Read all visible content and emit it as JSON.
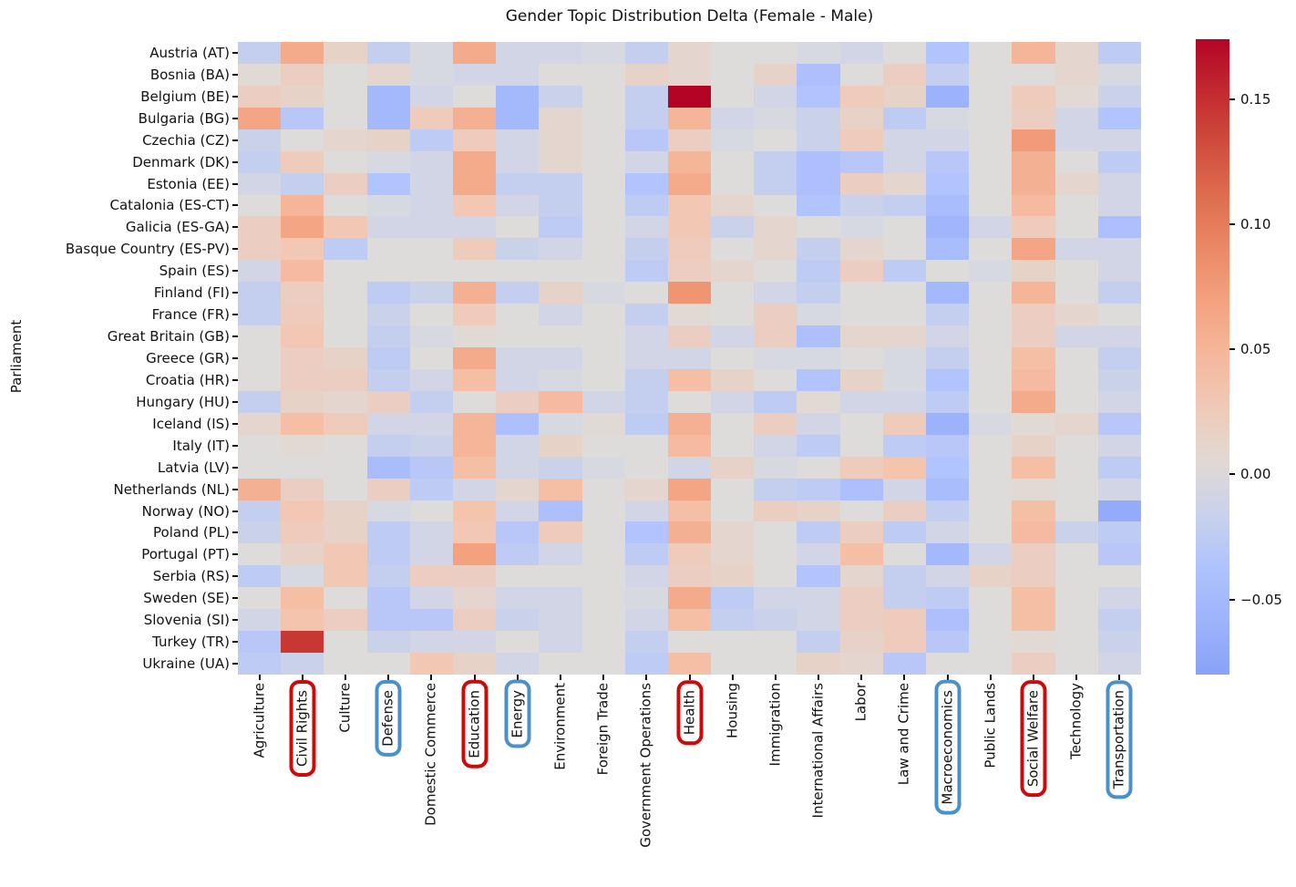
{
  "title": "Gender Topic Distribution Delta (Female - Male)",
  "ylabel": "Parliament",
  "highlight": {
    "red_color": "#cc0a0a",
    "blue_color": "#4a90c9",
    "red_circled": [
      "Civil Rights",
      "Education",
      "Health",
      "Social Welfare"
    ],
    "blue_circled": [
      "Defense",
      "Energy",
      "Macroeconomics",
      "Transportation"
    ]
  },
  "colorbar": {
    "tick_labels": [
      "0.15",
      "0.10",
      "0.05",
      "0.00",
      "−0.05"
    ],
    "tick_values": [
      0.15,
      0.1,
      0.05,
      0.0,
      -0.05
    ]
  },
  "chart_data": {
    "type": "heatmap",
    "title": "Gender Topic Distribution Delta (Female - Male)",
    "xlabel": "",
    "ylabel": "Parliament",
    "colormap": "coolwarm",
    "center": 0,
    "vmin": -0.08,
    "vmax": 0.174,
    "legend_position": "right-colorbar",
    "grid": false,
    "columns": [
      "Agriculture",
      "Civil Rights",
      "Culture",
      "Defense",
      "Domestic Commerce",
      "Education",
      "Energy",
      "Environment",
      "Foreign Trade",
      "Government Operations",
      "Health",
      "Housing",
      "Immigration",
      "International Affairs",
      "Labor",
      "Law and Crime",
      "Macroeconomics",
      "Public Lands",
      "Social Welfare",
      "Technology",
      "Transportation"
    ],
    "rows": [
      "Austria (AT)",
      "Bosnia (BA)",
      "Belgium (BE)",
      "Bulgaria (BG)",
      "Czechia (CZ)",
      "Denmark (DK)",
      "Estonia (EE)",
      "Catalonia (ES-CT)",
      "Galicia (ES-GA)",
      "Basque Country (ES-PV)",
      "Spain (ES)",
      "Finland (FI)",
      "France (FR)",
      "Great Britain (GB)",
      "Greece (GR)",
      "Croatia (HR)",
      "Hungary (HU)",
      "Iceland (IS)",
      "Italy (IT)",
      "Latvia (LV)",
      "Netherlands (NL)",
      "Norway (NO)",
      "Poland (PL)",
      "Portugal (PT)",
      "Serbia (RS)",
      "Sweden (SE)",
      "Slovenia (SI)",
      "Turkey (TR)",
      "Ukraine (UA)"
    ],
    "values": [
      [
        -0.02,
        0.06,
        0.015,
        -0.02,
        -0.005,
        0.06,
        -0.01,
        -0.01,
        -0.005,
        -0.02,
        0.01,
        0,
        0,
        -0.005,
        -0.01,
        0,
        -0.035,
        0,
        0.05,
        0.01,
        -0.025
      ],
      [
        0.005,
        0.02,
        0,
        0.01,
        -0.005,
        -0.01,
        -0.01,
        0,
        0,
        0.015,
        0.01,
        0,
        0.015,
        -0.04,
        0,
        0.02,
        -0.02,
        0,
        0,
        0.01,
        -0.005
      ],
      [
        0.02,
        0.015,
        0,
        -0.05,
        -0.01,
        0,
        -0.05,
        -0.015,
        0,
        -0.02,
        0.174,
        0,
        -0.01,
        -0.035,
        0.025,
        0.015,
        -0.06,
        0,
        0.025,
        0.005,
        -0.015
      ],
      [
        0.065,
        -0.03,
        0,
        -0.05,
        0.025,
        0.055,
        -0.05,
        0.01,
        0,
        -0.02,
        0.05,
        -0.01,
        -0.005,
        -0.015,
        0.015,
        -0.025,
        -0.005,
        0,
        0.02,
        -0.01,
        -0.035
      ],
      [
        -0.015,
        0,
        0.01,
        0.015,
        -0.025,
        0.025,
        -0.01,
        0.01,
        0,
        -0.03,
        0.02,
        -0.005,
        0,
        -0.015,
        0.025,
        -0.01,
        -0.01,
        0,
        0.075,
        -0.01,
        -0.01
      ],
      [
        -0.02,
        0.025,
        0,
        -0.005,
        -0.01,
        0.06,
        -0.01,
        0.01,
        0,
        -0.01,
        0.05,
        0,
        -0.02,
        -0.04,
        -0.03,
        -0.01,
        -0.03,
        0,
        0.055,
        0,
        -0.025
      ],
      [
        -0.01,
        -0.02,
        0.02,
        -0.035,
        -0.01,
        0.06,
        -0.02,
        -0.02,
        0,
        -0.035,
        0.06,
        0,
        -0.02,
        -0.04,
        0.02,
        0.01,
        -0.035,
        0,
        0.055,
        0.01,
        -0.01
      ],
      [
        0,
        0.05,
        0,
        -0.005,
        -0.01,
        0.03,
        -0.01,
        -0.02,
        0,
        -0.025,
        0.03,
        0.01,
        0,
        -0.035,
        -0.015,
        -0.02,
        -0.045,
        0,
        0.045,
        0,
        -0.01
      ],
      [
        0.02,
        0.065,
        0.03,
        -0.01,
        -0.01,
        -0.01,
        0,
        -0.025,
        0,
        -0.01,
        0.03,
        -0.015,
        0.01,
        0,
        -0.005,
        0,
        -0.055,
        -0.01,
        0.025,
        0,
        -0.04
      ],
      [
        0.02,
        0.03,
        -0.025,
        0,
        0,
        0.025,
        -0.015,
        -0.01,
        0,
        -0.02,
        0.025,
        0,
        0.01,
        -0.02,
        0.01,
        0,
        -0.045,
        0,
        0.065,
        -0.01,
        -0.01
      ],
      [
        -0.01,
        0.045,
        0,
        0,
        0,
        0,
        0,
        0,
        0,
        -0.025,
        0.02,
        0.01,
        0,
        -0.025,
        0.02,
        -0.025,
        0,
        -0.005,
        0.015,
        0,
        -0.01
      ],
      [
        -0.02,
        0.02,
        0,
        -0.025,
        -0.015,
        0.055,
        -0.02,
        0.015,
        -0.005,
        0,
        0.08,
        0,
        -0.01,
        -0.02,
        0,
        0,
        -0.05,
        0,
        0.05,
        0,
        -0.02
      ],
      [
        -0.02,
        0.025,
        0,
        -0.015,
        0,
        0.025,
        0,
        -0.01,
        0,
        -0.02,
        0.005,
        0,
        0.02,
        -0.005,
        0,
        0,
        -0.02,
        0,
        0.02,
        0.01,
        0
      ],
      [
        0,
        0.03,
        0,
        -0.02,
        -0.005,
        0.005,
        0,
        0,
        0,
        -0.01,
        0.02,
        -0.01,
        0.02,
        -0.04,
        0.01,
        0.01,
        -0.01,
        0,
        0.02,
        -0.01,
        -0.01
      ],
      [
        0,
        0.02,
        0.015,
        -0.025,
        0,
        0.06,
        -0.01,
        -0.01,
        0,
        -0.01,
        -0.01,
        0,
        -0.005,
        -0.005,
        0,
        -0.005,
        -0.02,
        0,
        0.04,
        0,
        -0.02
      ],
      [
        0,
        0.02,
        0.02,
        -0.02,
        -0.01,
        0.04,
        -0.01,
        -0.005,
        0,
        -0.02,
        0.04,
        0.015,
        0,
        -0.035,
        0.015,
        -0.005,
        -0.035,
        0,
        0.045,
        0,
        -0.015
      ],
      [
        -0.02,
        0.015,
        0.01,
        0.02,
        -0.02,
        0,
        0.02,
        0.045,
        -0.01,
        -0.02,
        0,
        -0.01,
        -0.025,
        0.005,
        -0.01,
        -0.01,
        -0.025,
        0,
        0.06,
        0,
        -0.01
      ],
      [
        0.01,
        0.04,
        0.025,
        -0.01,
        -0.01,
        0.05,
        -0.04,
        -0.005,
        0.005,
        -0.025,
        0.055,
        0,
        0.02,
        -0.01,
        0,
        0.025,
        -0.06,
        -0.005,
        0.005,
        0.01,
        -0.03
      ],
      [
        0,
        0.005,
        0,
        -0.02,
        -0.015,
        0.05,
        -0.01,
        0.015,
        0,
        0,
        0.045,
        0,
        -0.01,
        -0.025,
        0,
        -0.025,
        -0.03,
        0,
        0.015,
        0,
        -0.01
      ],
      [
        0,
        0,
        0,
        -0.045,
        -0.03,
        0.04,
        -0.01,
        -0.015,
        -0.005,
        0,
        -0.01,
        0.015,
        -0.005,
        0,
        0.025,
        0.035,
        -0.035,
        0,
        0.04,
        0,
        -0.025
      ],
      [
        0.055,
        0.02,
        0,
        0.02,
        -0.025,
        -0.01,
        0.01,
        0.04,
        0,
        0.01,
        0.065,
        0,
        -0.02,
        -0.025,
        -0.04,
        -0.01,
        -0.045,
        0,
        0.005,
        0,
        -0.01
      ],
      [
        -0.02,
        0.03,
        0.015,
        -0.005,
        0,
        0.035,
        -0.01,
        -0.04,
        0,
        -0.01,
        0.04,
        0,
        0.02,
        0.015,
        0,
        0.02,
        -0.02,
        0,
        0.04,
        0,
        -0.07
      ],
      [
        -0.015,
        0.025,
        0.015,
        -0.025,
        -0.01,
        0.03,
        -0.03,
        0.025,
        0,
        -0.035,
        0.055,
        0.01,
        0,
        -0.025,
        0.02,
        -0.025,
        -0.01,
        0,
        0.045,
        -0.015,
        -0.025
      ],
      [
        0,
        0.015,
        0.03,
        -0.025,
        -0.01,
        0.07,
        -0.025,
        -0.01,
        0,
        -0.025,
        0.025,
        0.01,
        0,
        -0.01,
        0.04,
        0,
        -0.05,
        -0.01,
        0.02,
        0,
        -0.03
      ],
      [
        -0.025,
        -0.005,
        0.03,
        -0.02,
        0.02,
        0.02,
        0,
        0,
        0,
        -0.01,
        0.02,
        0.015,
        0,
        -0.035,
        0.01,
        -0.02,
        -0.01,
        0.015,
        0.02,
        0,
        0
      ],
      [
        0,
        0.04,
        0,
        -0.03,
        -0.01,
        0.01,
        -0.01,
        -0.01,
        0,
        -0.005,
        0.06,
        -0.025,
        -0.01,
        -0.01,
        0.02,
        -0.02,
        -0.025,
        0,
        0.04,
        0,
        -0.01
      ],
      [
        -0.01,
        0.035,
        0.02,
        -0.03,
        -0.03,
        0.02,
        -0.015,
        -0.01,
        0,
        -0.01,
        0.04,
        -0.02,
        -0.015,
        -0.01,
        0.02,
        0.025,
        -0.04,
        0,
        0.04,
        0,
        -0.02
      ],
      [
        -0.03,
        0.145,
        0,
        -0.015,
        -0.01,
        -0.01,
        0,
        -0.01,
        0,
        -0.02,
        0,
        0,
        0,
        -0.02,
        0.015,
        0.025,
        -0.03,
        0,
        0.005,
        0,
        -0.015
      ],
      [
        -0.025,
        -0.015,
        0,
        0,
        0.03,
        0.015,
        -0.01,
        0,
        0,
        -0.025,
        0.04,
        0,
        0,
        0.015,
        0.01,
        -0.03,
        0,
        0,
        0.02,
        0,
        -0.01
      ]
    ],
    "annotations": {
      "max_cell": {
        "row": "Belgium (BE)",
        "column": "Health",
        "value": 0.174
      },
      "second_max_cell": {
        "row": "Turkey (TR)",
        "column": "Civil Rights",
        "value": 0.145
      },
      "min_cell": {
        "row": "Norway (NO)",
        "column": "Transportation",
        "value": -0.07
      }
    }
  }
}
